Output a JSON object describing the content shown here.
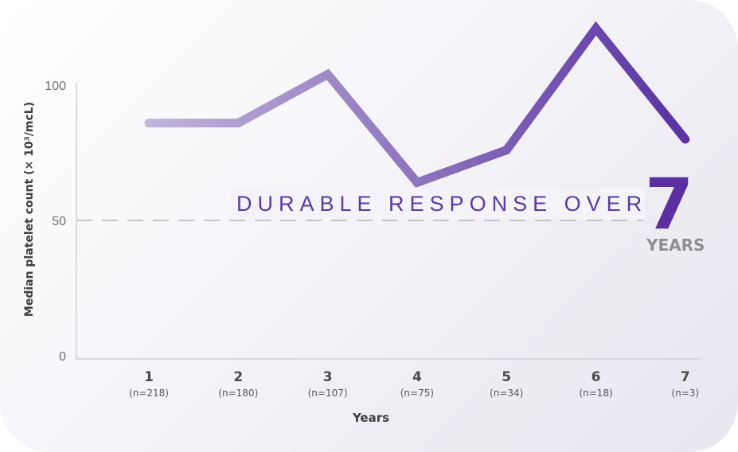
{
  "chart_data": {
    "type": "line",
    "ylabel": "Median platelet count (× 10³/mcL)",
    "xlabel": "Years",
    "ylim": [
      0,
      100
    ],
    "yticks": [
      0,
      50,
      100
    ],
    "categories": [
      "1",
      "2",
      "3",
      "4",
      "5",
      "6",
      "7"
    ],
    "n_labels": [
      "(n=218)",
      "(n=180)",
      "(n=107)",
      "(n=75)",
      "(n=34)",
      "(n=18)",
      "(n=3)"
    ],
    "values": [
      86,
      86,
      104,
      64,
      76,
      121,
      80
    ],
    "reference_line": {
      "value": 50,
      "style": "dashed"
    },
    "annotation": {
      "text": "DURABLE RESPONSE OVER",
      "number": "7",
      "unit": "YEARS"
    },
    "grid": false,
    "line_gradient": [
      "#c1b5da",
      "#5b34a2"
    ]
  }
}
